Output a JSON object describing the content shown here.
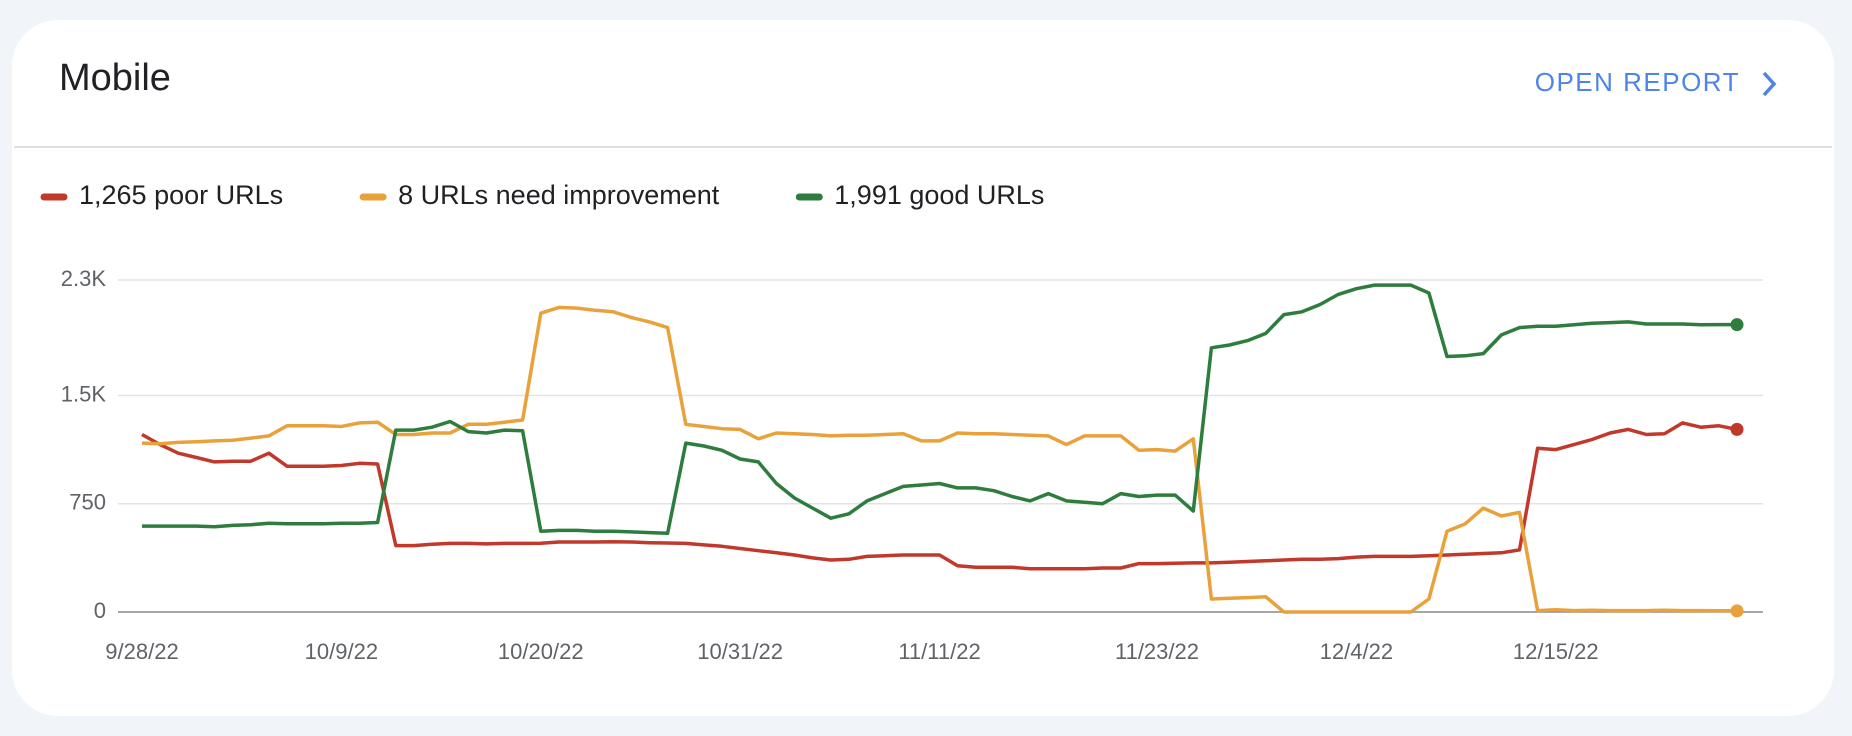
{
  "header": {
    "action": "OPEN REPORT"
  },
  "chart_data": {
    "type": "line",
    "title": "Mobile",
    "categories": [
      "9/28/22",
      null,
      null,
      null,
      null,
      null,
      null,
      null,
      null,
      null,
      null,
      "10/9/22",
      null,
      null,
      null,
      null,
      null,
      null,
      null,
      null,
      null,
      null,
      "10/20/22",
      null,
      null,
      null,
      null,
      null,
      null,
      null,
      null,
      null,
      null,
      "10/31/22",
      null,
      null,
      null,
      null,
      null,
      null,
      null,
      null,
      null,
      null,
      "11/11/22",
      null,
      null,
      null,
      null,
      null,
      null,
      null,
      null,
      null,
      null,
      null,
      "11/23/22",
      null,
      null,
      null,
      null,
      null,
      null,
      null,
      null,
      null,
      null,
      "12/4/22",
      null,
      null,
      null,
      null,
      null,
      null,
      null,
      null,
      null,
      null,
      "12/15/22",
      null,
      null,
      null,
      null,
      null,
      null,
      null,
      null,
      null,
      null
    ],
    "series": [
      {
        "name": "1,265 poor URLs",
        "color": "#c0392b",
        "values": [
          1230,
          1160,
          1100,
          1070,
          1040,
          1045,
          1045,
          1100,
          1010,
          1010,
          1010,
          1015,
          1030,
          1025,
          460,
          460,
          470,
          475,
          475,
          472,
          475,
          475,
          476,
          485,
          485,
          485,
          487,
          485,
          480,
          478,
          475,
          465,
          455,
          440,
          425,
          410,
          395,
          375,
          360,
          365,
          385,
          390,
          395,
          395,
          395,
          320,
          310,
          310,
          310,
          300,
          300,
          300,
          300,
          305,
          305,
          335,
          335,
          338,
          340,
          340,
          345,
          350,
          355,
          360,
          365,
          365,
          370,
          380,
          385,
          385,
          385,
          390,
          395,
          400,
          405,
          410,
          430,
          1135,
          1125,
          1160,
          1195,
          1240,
          1265,
          1230,
          1235,
          1310,
          1280,
          1290,
          1265
        ]
      },
      {
        "name": "8 URLs need improvement",
        "color": "#e9a23b",
        "values": [
          1170,
          1165,
          1175,
          1180,
          1185,
          1190,
          1205,
          1220,
          1290,
          1290,
          1290,
          1285,
          1310,
          1315,
          1230,
          1230,
          1240,
          1240,
          1300,
          1300,
          1315,
          1330,
          2070,
          2110,
          2105,
          2090,
          2080,
          2040,
          2010,
          1970,
          1300,
          1285,
          1270,
          1265,
          1200,
          1240,
          1235,
          1230,
          1220,
          1225,
          1225,
          1230,
          1235,
          1185,
          1185,
          1240,
          1235,
          1235,
          1230,
          1225,
          1220,
          1160,
          1220,
          1220,
          1220,
          1120,
          1125,
          1115,
          1200,
          90,
          95,
          100,
          105,
          0,
          0,
          0,
          0,
          0,
          0,
          0,
          0,
          90,
          560,
          610,
          720,
          665,
          690,
          10,
          15,
          10,
          12,
          10,
          10,
          10,
          12,
          10,
          10,
          8,
          8
        ]
      },
      {
        "name": "1,991 good URLs",
        "color": "#2e7d3e",
        "values": [
          595,
          595,
          595,
          595,
          590,
          600,
          605,
          615,
          612,
          612,
          612,
          615,
          615,
          620,
          1260,
          1260,
          1280,
          1320,
          1250,
          1240,
          1260,
          1255,
          560,
          565,
          565,
          560,
          560,
          555,
          550,
          545,
          1170,
          1150,
          1120,
          1060,
          1040,
          890,
          790,
          720,
          650,
          680,
          770,
          820,
          870,
          880,
          890,
          860,
          860,
          840,
          800,
          770,
          820,
          770,
          760,
          750,
          820,
          800,
          810,
          810,
          700,
          1830,
          1850,
          1880,
          1930,
          2060,
          2080,
          2130,
          2200,
          2240,
          2265,
          2265,
          2265,
          2210,
          1770,
          1775,
          1790,
          1920,
          1970,
          1980,
          1980,
          1990,
          2000,
          2005,
          2010,
          1995,
          1995,
          1995,
          1990,
          1991,
          1991
        ]
      }
    ],
    "ylim": [
      0,
      2300
    ],
    "yticks": [
      0,
      750,
      {
        "value": 1500,
        "label": "1.5K"
      },
      {
        "value": 2300,
        "label": "2.3K"
      }
    ],
    "grid": true
  }
}
